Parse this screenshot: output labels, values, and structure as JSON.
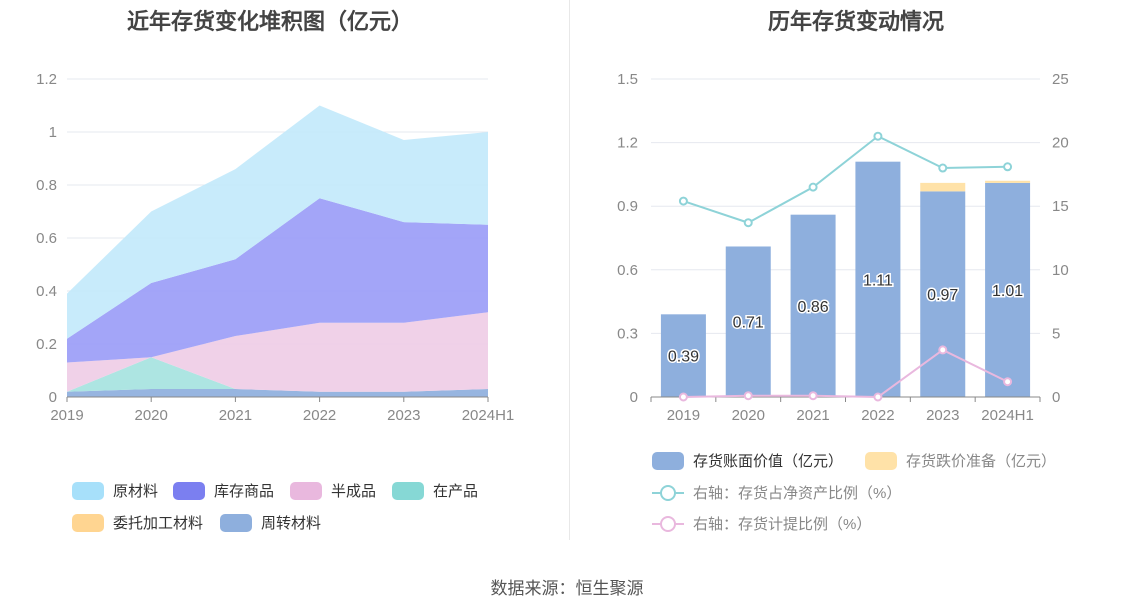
{
  "source": "数据来源：恒生聚源",
  "chart_data": [
    {
      "type": "area",
      "stacked": true,
      "title": "近年存货变化堆积图（亿元）",
      "categories": [
        "2019",
        "2020",
        "2021",
        "2022",
        "2023",
        "2024H1"
      ],
      "y_ticks": [
        "0",
        "0.2",
        "0.4",
        "0.6",
        "0.8",
        "1",
        "1.2"
      ],
      "ylim": [
        0,
        1.2
      ],
      "grid": true,
      "legend_position": "bottom",
      "series": [
        {
          "name": "周转材料",
          "color": "#8eafdd",
          "values": [
            0.02,
            0.03,
            0.03,
            0.02,
            0.02,
            0.03
          ]
        },
        {
          "name": "委托加工材料",
          "color": "#ffd591",
          "values": [
            0,
            0,
            0,
            0,
            0,
            0
          ]
        },
        {
          "name": "在产品",
          "color": "#a6e3e0",
          "values": [
            0,
            0.12,
            0,
            0,
            0,
            0
          ]
        },
        {
          "name": "半成品",
          "color": "#efcde6",
          "values": [
            0.11,
            0,
            0.2,
            0.26,
            0.26,
            0.29
          ]
        },
        {
          "name": "库存商品",
          "color": "#9b9df7",
          "values": [
            0.09,
            0.28,
            0.29,
            0.47,
            0.38,
            0.33
          ]
        },
        {
          "name": "原材料",
          "color": "#c3e9fb",
          "values": [
            0.17,
            0.27,
            0.34,
            0.35,
            0.31,
            0.35
          ]
        }
      ],
      "legend": [
        {
          "name": "原材料",
          "color": "#a7e0fa"
        },
        {
          "name": "库存商品",
          "color": "#7b7ff0"
        },
        {
          "name": "半成品",
          "color": "#e9b8de"
        },
        {
          "name": "在产品",
          "color": "#86d8d5"
        },
        {
          "name": "委托加工材料",
          "color": "#ffd591"
        },
        {
          "name": "周转材料",
          "color": "#8eafdd"
        }
      ]
    },
    {
      "type": "bar",
      "title": "历年存货变动情况",
      "categories": [
        "2019",
        "2020",
        "2021",
        "2022",
        "2023",
        "2024H1"
      ],
      "y_left_ticks": [
        "0",
        "0.3",
        "0.6",
        "0.9",
        "1.2",
        "1.5"
      ],
      "y_left_lim": [
        0,
        1.5
      ],
      "y_right_ticks": [
        "0",
        "5",
        "10",
        "15",
        "20",
        "25"
      ],
      "y_right_lim": [
        0,
        25
      ],
      "grid": true,
      "legend_position": "bottom",
      "bars": [
        {
          "name": "存货账面价值（亿元）",
          "color": "#8eafdd",
          "values": [
            0.39,
            0.71,
            0.86,
            1.11,
            0.97,
            1.01
          ],
          "labels": [
            "0.39",
            "0.71",
            "0.86",
            "1.11",
            "0.97",
            "1.01"
          ]
        },
        {
          "name": "存货跌价准备（亿元）",
          "color": "#ffe2a8",
          "values": [
            0,
            0,
            0,
            0,
            0.04,
            0.01
          ]
        }
      ],
      "lines": [
        {
          "name": "右轴：存货占净资产比例（%）",
          "color": "#8ed3d8",
          "axis": "right",
          "values": [
            15.4,
            13.7,
            16.5,
            20.5,
            18.0,
            18.1
          ]
        },
        {
          "name": "右轴：存货计提比例（%）",
          "color": "#e9b8de",
          "axis": "right",
          "values": [
            0,
            0.1,
            0.1,
            0,
            3.7,
            1.2
          ]
        }
      ]
    }
  ]
}
